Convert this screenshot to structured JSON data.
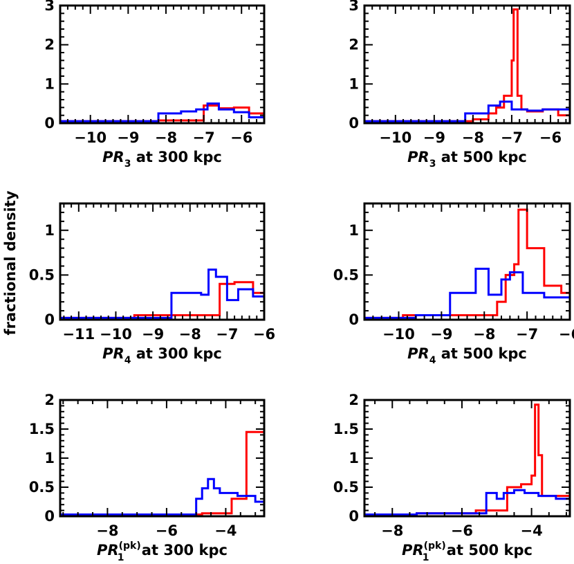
{
  "ylabel": "fractional density",
  "colors": {
    "red": "#ff0000",
    "blue": "#0000ff"
  },
  "chart_data": [
    {
      "type": "line",
      "step": true,
      "axis_prefix": "PR",
      "axis_sub": "3",
      "axis_sup": "",
      "axis_suffix": " at 300 kpc",
      "xlim": [
        -10.8,
        -5.4
      ],
      "ylim": [
        0,
        3
      ],
      "xticks": [
        -10,
        -9,
        -8,
        -7,
        -6
      ],
      "yticks": [
        0,
        1,
        2,
        3
      ],
      "series": [
        {
          "color": "red",
          "x": [
            -10.8,
            -9.5,
            -8.2,
            -7.0,
            -6.6,
            -6.2,
            -5.8,
            -5.4
          ],
          "y": [
            0.05,
            0.05,
            0.07,
            0.45,
            0.38,
            0.4,
            0.25,
            0.2
          ]
        },
        {
          "color": "blue",
          "x": [
            -10.8,
            -9.6,
            -8.2,
            -7.6,
            -7.2,
            -6.9,
            -6.6,
            -6.2,
            -5.8,
            -5.4
          ],
          "y": [
            0.05,
            0.05,
            0.25,
            0.3,
            0.35,
            0.5,
            0.35,
            0.28,
            0.15,
            0.15
          ]
        }
      ]
    },
    {
      "type": "line",
      "step": true,
      "axis_prefix": "PR",
      "axis_sub": "3",
      "axis_sup": "",
      "axis_suffix": " at 500 kpc",
      "xlim": [
        -10.8,
        -5.5
      ],
      "ylim": [
        0,
        3
      ],
      "xticks": [
        -10,
        -9,
        -8,
        -7,
        -6
      ],
      "yticks": [
        0,
        1,
        2,
        3
      ],
      "series": [
        {
          "color": "red",
          "x": [
            -10.8,
            -9.5,
            -8.0,
            -7.6,
            -7.4,
            -7.2,
            -7.0,
            -6.95,
            -6.85,
            -6.75,
            -6.6,
            -6.2,
            -5.8,
            -5.5
          ],
          "y": [
            0.05,
            0.05,
            0.1,
            0.25,
            0.4,
            0.7,
            1.6,
            2.9,
            0.7,
            0.35,
            0.3,
            0.35,
            0.2,
            0.2
          ]
        },
        {
          "color": "blue",
          "x": [
            -10.8,
            -9.5,
            -8.2,
            -7.6,
            -7.3,
            -7.0,
            -6.6,
            -6.2,
            -5.8,
            -5.5
          ],
          "y": [
            0.05,
            0.05,
            0.25,
            0.45,
            0.55,
            0.35,
            0.32,
            0.35,
            0.35,
            0.35
          ]
        }
      ]
    },
    {
      "type": "line",
      "step": true,
      "axis_prefix": "PR",
      "axis_sub": "4",
      "axis_sup": "",
      "axis_suffix": " at 300 kpc",
      "xlim": [
        -11.5,
        -6.0
      ],
      "ylim": [
        0,
        1.3
      ],
      "xticks": [
        -11,
        -10,
        -9,
        -8,
        -7,
        -6
      ],
      "yticks": [
        0,
        0.5,
        1
      ],
      "series": [
        {
          "color": "red",
          "x": [
            -11.5,
            -10.5,
            -9.5,
            -8.5,
            -7.4,
            -7.2,
            -6.8,
            -6.3,
            -6.0
          ],
          "y": [
            0.02,
            0.02,
            0.05,
            0.05,
            0.05,
            0.4,
            0.42,
            0.3,
            0.3
          ]
        },
        {
          "color": "blue",
          "x": [
            -11.5,
            -10.2,
            -8.5,
            -7.7,
            -7.5,
            -7.3,
            -7.0,
            -6.7,
            -6.3,
            -6.0
          ],
          "y": [
            0.02,
            0.02,
            0.3,
            0.28,
            0.56,
            0.48,
            0.22,
            0.34,
            0.26,
            0.3
          ]
        }
      ]
    },
    {
      "type": "line",
      "step": true,
      "axis_prefix": "PR",
      "axis_sub": "4",
      "axis_sup": "",
      "axis_suffix": " at 500 kpc",
      "xlim": [
        -10.8,
        -6.0
      ],
      "ylim": [
        0,
        1.3
      ],
      "xticks": [
        -10,
        -9,
        -8,
        -7,
        -6
      ],
      "yticks": [
        0,
        0.5,
        1
      ],
      "series": [
        {
          "color": "red",
          "x": [
            -10.8,
            -9.9,
            -8.9,
            -7.7,
            -7.5,
            -7.3,
            -7.2,
            -7.0,
            -6.6,
            -6.2,
            -6.0
          ],
          "y": [
            0.02,
            0.05,
            0.05,
            0.2,
            0.5,
            0.62,
            1.23,
            0.8,
            0.38,
            0.3,
            0.14
          ]
        },
        {
          "color": "blue",
          "x": [
            -10.8,
            -9.6,
            -8.8,
            -8.2,
            -7.9,
            -7.6,
            -7.4,
            -7.1,
            -6.6,
            -6.2,
            -6.0
          ],
          "y": [
            0.02,
            0.05,
            0.3,
            0.57,
            0.28,
            0.45,
            0.53,
            0.3,
            0.25,
            0.25,
            0.25
          ]
        }
      ]
    },
    {
      "type": "line",
      "step": true,
      "axis_prefix": "PR",
      "axis_sub": "1",
      "axis_sup": "(pk)",
      "axis_suffix": " at 300 kpc",
      "xlim": [
        -9.6,
        -2.7
      ],
      "ylim": [
        0,
        2
      ],
      "xticks": [
        -8,
        -6,
        -4
      ],
      "yticks": [
        0,
        0.5,
        1,
        1.5,
        2
      ],
      "series": [
        {
          "color": "red",
          "x": [
            -9.6,
            -6.0,
            -4.8,
            -3.8,
            -3.3,
            -2.7
          ],
          "y": [
            0.03,
            0.03,
            0.05,
            0.3,
            1.45,
            0.25
          ]
        },
        {
          "color": "blue",
          "x": [
            -9.6,
            -5.0,
            -4.8,
            -4.6,
            -4.4,
            -4.2,
            -3.6,
            -3.0,
            -2.7
          ],
          "y": [
            0.03,
            0.3,
            0.48,
            0.64,
            0.48,
            0.4,
            0.35,
            0.25,
            0.2
          ]
        }
      ]
    },
    {
      "type": "line",
      "step": true,
      "axis_prefix": "PR",
      "axis_sub": "1",
      "axis_sup": "(pk)",
      "axis_suffix": " at 500 kpc",
      "xlim": [
        -8.8,
        -2.9
      ],
      "ylim": [
        0,
        2
      ],
      "xticks": [
        -8,
        -6,
        -4
      ],
      "yticks": [
        0,
        0.5,
        1,
        1.5,
        2
      ],
      "series": [
        {
          "color": "red",
          "x": [
            -8.8,
            -7.3,
            -5.6,
            -4.7,
            -4.3,
            -4.0,
            -3.9,
            -3.8,
            -3.7,
            -3.3,
            -2.9
          ],
          "y": [
            0.03,
            0.05,
            0.1,
            0.5,
            0.55,
            0.7,
            1.92,
            1.05,
            0.35,
            0.35,
            0.15
          ]
        },
        {
          "color": "blue",
          "x": [
            -8.8,
            -7.3,
            -5.3,
            -5.0,
            -4.8,
            -4.5,
            -4.2,
            -3.8,
            -3.3,
            -2.9
          ],
          "y": [
            0.03,
            0.05,
            0.4,
            0.3,
            0.4,
            0.45,
            0.4,
            0.35,
            0.3,
            0.15
          ]
        }
      ]
    }
  ]
}
